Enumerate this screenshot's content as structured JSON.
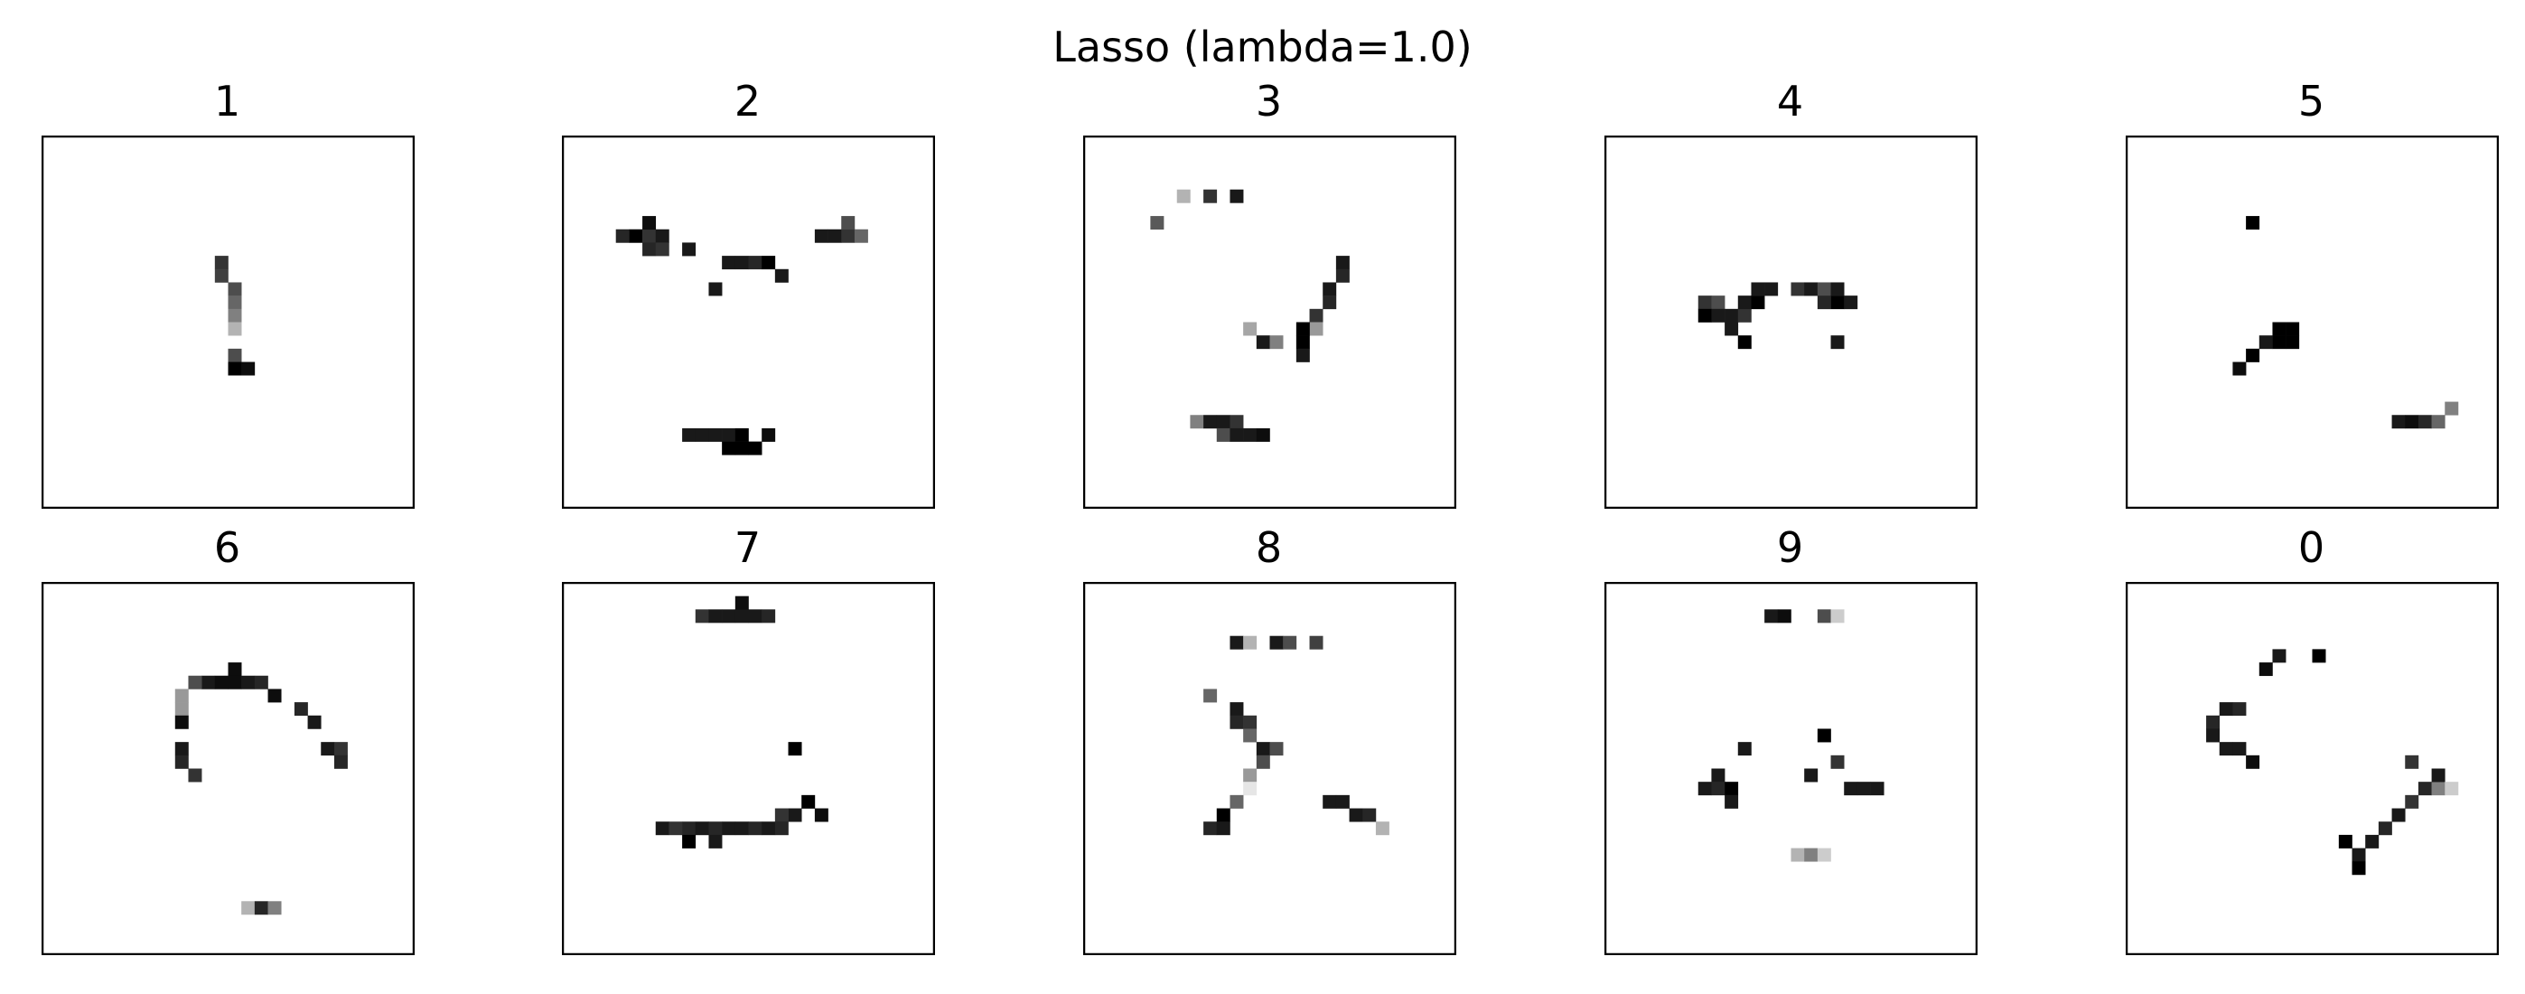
{
  "title": "Lasso (lambda=1.0)",
  "chart_data": {
    "type": "heatmap",
    "title": "Lasso (lambda=1.0)",
    "grid_size": [
      28,
      28
    ],
    "colormap": "gray_r",
    "axes": "hidden",
    "panels": [
      {
        "label": "1",
        "cells": [
          [
            13,
            9,
            0.8
          ],
          [
            13,
            10,
            0.75
          ],
          [
            14,
            11,
            0.7
          ],
          [
            14,
            12,
            0.6
          ],
          [
            14,
            13,
            0.5
          ],
          [
            14,
            14,
            0.3
          ],
          [
            14,
            16,
            0.7
          ],
          [
            14,
            17,
            1.0
          ],
          [
            15,
            17,
            0.95
          ]
        ]
      },
      {
        "label": "2",
        "cells": [
          [
            5,
            7,
            1.0
          ],
          [
            4,
            7,
            0.85
          ],
          [
            6,
            7,
            0.8
          ],
          [
            7,
            7,
            0.9
          ],
          [
            6,
            6,
            0.95
          ],
          [
            6,
            8,
            0.85
          ],
          [
            7,
            8,
            0.8
          ],
          [
            9,
            8,
            0.9
          ],
          [
            12,
            9,
            0.9
          ],
          [
            13,
            9,
            0.9
          ],
          [
            14,
            9,
            0.85
          ],
          [
            15,
            9,
            1.0
          ],
          [
            16,
            10,
            0.9
          ],
          [
            11,
            11,
            0.9
          ],
          [
            19,
            7,
            0.9
          ],
          [
            20,
            7,
            0.9
          ],
          [
            21,
            7,
            0.8
          ],
          [
            22,
            7,
            0.6
          ],
          [
            21,
            6,
            0.7
          ],
          [
            9,
            22,
            0.9
          ],
          [
            10,
            22,
            0.9
          ],
          [
            11,
            22,
            0.9
          ],
          [
            12,
            22,
            0.9
          ],
          [
            13,
            22,
            1.0
          ],
          [
            15,
            22,
            0.95
          ],
          [
            12,
            23,
            1.0
          ],
          [
            13,
            23,
            1.0
          ],
          [
            14,
            23,
            1.0
          ]
        ]
      },
      {
        "label": "3",
        "cells": [
          [
            7,
            4,
            0.3
          ],
          [
            9,
            4,
            0.8
          ],
          [
            11,
            4,
            0.9
          ],
          [
            5,
            6,
            0.65
          ],
          [
            19,
            9,
            0.9
          ],
          [
            19,
            10,
            0.85
          ],
          [
            18,
            11,
            0.9
          ],
          [
            18,
            12,
            0.85
          ],
          [
            17,
            13,
            0.8
          ],
          [
            17,
            14,
            0.4
          ],
          [
            16,
            14,
            1.0
          ],
          [
            16,
            15,
            1.0
          ],
          [
            12,
            14,
            0.35
          ],
          [
            13,
            15,
            0.9
          ],
          [
            14,
            15,
            0.5
          ],
          [
            16,
            16,
            0.9
          ],
          [
            8,
            21,
            0.5
          ],
          [
            9,
            21,
            0.9
          ],
          [
            10,
            21,
            0.9
          ],
          [
            11,
            21,
            0.8
          ],
          [
            10,
            22,
            0.7
          ],
          [
            11,
            22,
            0.9
          ],
          [
            12,
            22,
            0.9
          ],
          [
            13,
            22,
            0.95
          ]
        ]
      },
      {
        "label": "4",
        "cells": [
          [
            7,
            12,
            0.8
          ],
          [
            8,
            12,
            0.7
          ],
          [
            7,
            13,
            1.0
          ],
          [
            8,
            13,
            0.9
          ],
          [
            9,
            13,
            0.9
          ],
          [
            10,
            13,
            0.8
          ],
          [
            9,
            14,
            0.9
          ],
          [
            10,
            12,
            0.9
          ],
          [
            11,
            12,
            1.0
          ],
          [
            11,
            11,
            0.9
          ],
          [
            12,
            11,
            0.9
          ],
          [
            14,
            11,
            0.8
          ],
          [
            15,
            11,
            0.9
          ],
          [
            16,
            11,
            0.7
          ],
          [
            17,
            12,
            1.0
          ],
          [
            16,
            12,
            0.85
          ],
          [
            17,
            11,
            0.9
          ],
          [
            18,
            12,
            0.9
          ],
          [
            10,
            15,
            1.0
          ],
          [
            17,
            15,
            0.9
          ]
        ]
      },
      {
        "label": "5",
        "cells": [
          [
            9,
            6,
            1.0
          ],
          [
            11,
            14,
            1.0
          ],
          [
            11,
            15,
            1.0
          ],
          [
            12,
            14,
            1.0
          ],
          [
            12,
            15,
            1.0
          ],
          [
            10,
            15,
            0.9
          ],
          [
            9,
            16,
            1.0
          ],
          [
            8,
            17,
            0.95
          ],
          [
            20,
            21,
            0.9
          ],
          [
            21,
            21,
            0.95
          ],
          [
            22,
            21,
            0.85
          ],
          [
            23,
            21,
            0.6
          ],
          [
            24,
            20,
            0.5
          ]
        ]
      },
      {
        "label": "6",
        "cells": [
          [
            14,
            6,
            0.95
          ],
          [
            12,
            7,
            0.9
          ],
          [
            13,
            7,
            0.95
          ],
          [
            14,
            7,
            0.95
          ],
          [
            15,
            7,
            0.9
          ],
          [
            16,
            7,
            0.85
          ],
          [
            11,
            7,
            0.7
          ],
          [
            10,
            8,
            0.4
          ],
          [
            17,
            8,
            0.95
          ],
          [
            10,
            9,
            0.4
          ],
          [
            19,
            9,
            0.85
          ],
          [
            10,
            10,
            0.95
          ],
          [
            20,
            10,
            0.9
          ],
          [
            10,
            12,
            0.9
          ],
          [
            10,
            13,
            0.85
          ],
          [
            11,
            14,
            0.8
          ],
          [
            21,
            12,
            0.9
          ],
          [
            22,
            12,
            0.8
          ],
          [
            22,
            13,
            0.85
          ],
          [
            15,
            24,
            0.3
          ],
          [
            16,
            24,
            0.85
          ],
          [
            17,
            24,
            0.5
          ]
        ]
      },
      {
        "label": "7",
        "cells": [
          [
            10,
            2,
            0.8
          ],
          [
            11,
            2,
            0.9
          ],
          [
            12,
            2,
            0.9
          ],
          [
            13,
            2,
            0.9
          ],
          [
            14,
            2,
            0.9
          ],
          [
            15,
            2,
            0.85
          ],
          [
            13,
            1,
            0.95
          ],
          [
            17,
            12,
            1.0
          ],
          [
            18,
            16,
            1.0
          ],
          [
            17,
            17,
            0.9
          ],
          [
            19,
            17,
            0.95
          ],
          [
            16,
            17,
            0.8
          ],
          [
            7,
            18,
            0.9
          ],
          [
            8,
            18,
            0.8
          ],
          [
            9,
            18,
            0.85
          ],
          [
            10,
            18,
            0.9
          ],
          [
            11,
            18,
            0.85
          ],
          [
            12,
            18,
            0.9
          ],
          [
            13,
            18,
            0.9
          ],
          [
            14,
            18,
            0.85
          ],
          [
            15,
            18,
            0.9
          ],
          [
            16,
            18,
            0.85
          ],
          [
            9,
            19,
            1.0
          ],
          [
            11,
            19,
            0.9
          ]
        ]
      },
      {
        "label": "8",
        "cells": [
          [
            11,
            4,
            0.9
          ],
          [
            12,
            4,
            0.3
          ],
          [
            14,
            4,
            0.9
          ],
          [
            15,
            4,
            0.7
          ],
          [
            17,
            4,
            0.75
          ],
          [
            9,
            8,
            0.6
          ],
          [
            11,
            9,
            0.9
          ],
          [
            11,
            10,
            0.85
          ],
          [
            12,
            10,
            0.8
          ],
          [
            12,
            11,
            0.6
          ],
          [
            13,
            12,
            0.9
          ],
          [
            14,
            12,
            0.7
          ],
          [
            13,
            13,
            0.7
          ],
          [
            12,
            14,
            0.4
          ],
          [
            12,
            15,
            0.1
          ],
          [
            11,
            16,
            0.6
          ],
          [
            10,
            17,
            1.0
          ],
          [
            9,
            18,
            0.85
          ],
          [
            10,
            18,
            0.9
          ],
          [
            18,
            16,
            0.9
          ],
          [
            19,
            16,
            0.9
          ],
          [
            20,
            17,
            0.9
          ],
          [
            21,
            17,
            0.85
          ],
          [
            22,
            18,
            0.3
          ]
        ]
      },
      {
        "label": "9",
        "cells": [
          [
            12,
            2,
            0.9
          ],
          [
            13,
            2,
            0.95
          ],
          [
            16,
            2,
            0.7
          ],
          [
            17,
            2,
            0.2
          ],
          [
            16,
            11,
            1.0
          ],
          [
            10,
            12,
            0.9
          ],
          [
            17,
            13,
            0.8
          ],
          [
            8,
            14,
            0.9
          ],
          [
            15,
            14,
            0.9
          ],
          [
            7,
            15,
            0.9
          ],
          [
            8,
            15,
            0.85
          ],
          [
            9,
            15,
            1.0
          ],
          [
            9,
            16,
            0.9
          ],
          [
            18,
            15,
            0.9
          ],
          [
            19,
            15,
            0.9
          ],
          [
            20,
            15,
            0.9
          ],
          [
            14,
            20,
            0.3
          ],
          [
            15,
            20,
            0.5
          ],
          [
            16,
            20,
            0.2
          ]
        ]
      },
      {
        "label": "0",
        "cells": [
          [
            11,
            5,
            0.9
          ],
          [
            14,
            5,
            1.0
          ],
          [
            10,
            6,
            0.95
          ],
          [
            7,
            9,
            0.9
          ],
          [
            8,
            9,
            0.85
          ],
          [
            6,
            10,
            0.85
          ],
          [
            6,
            11,
            0.9
          ],
          [
            7,
            12,
            0.9
          ],
          [
            8,
            12,
            0.9
          ],
          [
            9,
            13,
            0.95
          ],
          [
            21,
            13,
            0.8
          ],
          [
            22,
            15,
            0.85
          ],
          [
            23,
            15,
            0.5
          ],
          [
            23,
            14,
            0.9
          ],
          [
            24,
            15,
            0.2
          ],
          [
            21,
            16,
            0.8
          ],
          [
            20,
            17,
            0.9
          ],
          [
            19,
            18,
            0.85
          ],
          [
            16,
            19,
            1.0
          ],
          [
            18,
            19,
            0.9
          ],
          [
            17,
            20,
            0.9
          ],
          [
            17,
            21,
            1.0
          ]
        ]
      }
    ]
  }
}
